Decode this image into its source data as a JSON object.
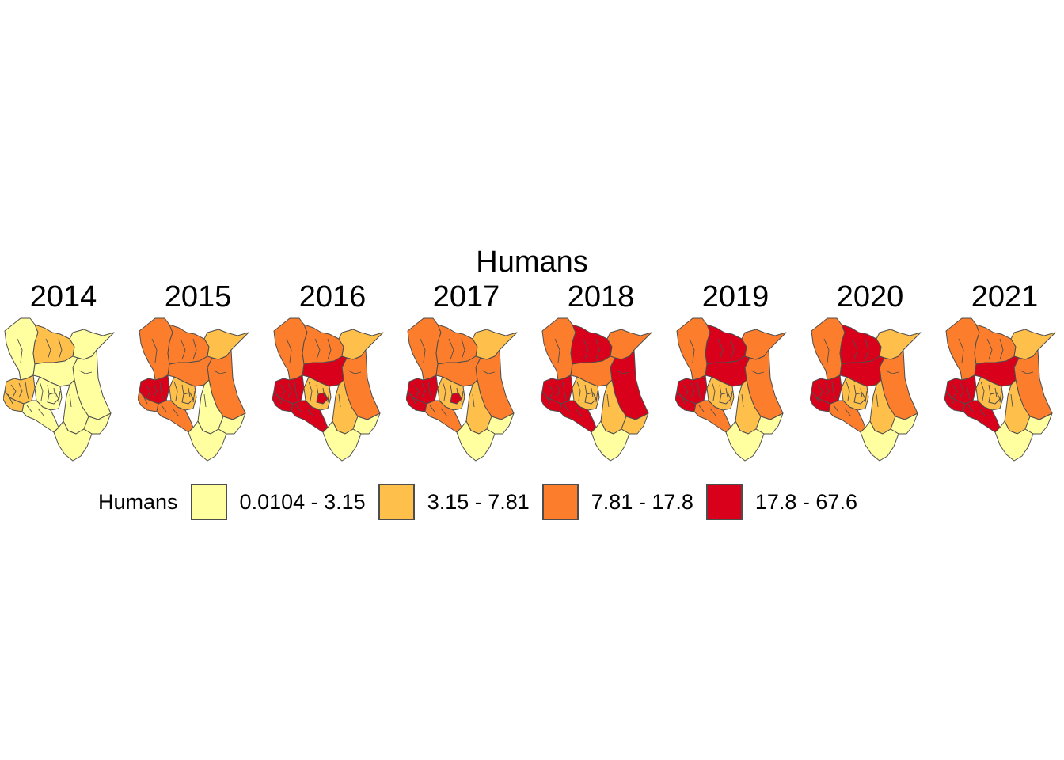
{
  "title": "Humans",
  "legend": {
    "title": "Humans",
    "classes": [
      {
        "label": "0.0104 - 3.15",
        "color": "#FFFFA0"
      },
      {
        "label": "3.15 - 7.81",
        "color": "#FEBF4B"
      },
      {
        "label": "7.81 - 17.8",
        "color": "#FC7D2B"
      },
      {
        "label": "17.8 - 67.6",
        "color": "#D9001C"
      }
    ]
  },
  "border_color": "#4d4d4d",
  "panels": [
    {
      "year": "2014",
      "regions": {
        "nw": 0,
        "n": 1,
        "ne": 0,
        "east": 0,
        "rift": 0,
        "west": 1,
        "lake": 1,
        "central": 0,
        "se": 0,
        "sw": 0,
        "coast_n": 0,
        "coast_s": 0,
        "nairobi": 0
      }
    },
    {
      "year": "2015",
      "regions": {
        "nw": 2,
        "n": 2,
        "ne": 1,
        "east": 2,
        "rift": 2,
        "west": 3,
        "lake": 2,
        "central": 1,
        "se": 0,
        "sw": 2,
        "coast_n": 0,
        "coast_s": 0,
        "nairobi": 1
      }
    },
    {
      "year": "2016",
      "regions": {
        "nw": 2,
        "n": 2,
        "ne": 1,
        "east": 2,
        "rift": 3,
        "west": 3,
        "lake": 3,
        "central": 1,
        "se": 1,
        "sw": 3,
        "coast_n": 0,
        "coast_s": 0,
        "nairobi": 3
      }
    },
    {
      "year": "2017",
      "regions": {
        "nw": 2,
        "n": 2,
        "ne": 1,
        "east": 2,
        "rift": 2,
        "west": 3,
        "lake": 3,
        "central": 1,
        "se": 1,
        "sw": 2,
        "coast_n": 0,
        "coast_s": 0,
        "nairobi": 3
      }
    },
    {
      "year": "2018",
      "regions": {
        "nw": 2,
        "n": 3,
        "ne": 2,
        "east": 3,
        "rift": 2,
        "west": 3,
        "lake": 3,
        "central": 1,
        "se": 1,
        "sw": 3,
        "coast_n": 1,
        "coast_s": 0,
        "nairobi": 1
      }
    },
    {
      "year": "2019",
      "regions": {
        "nw": 2,
        "n": 3,
        "ne": 2,
        "east": 2,
        "rift": 3,
        "west": 3,
        "lake": 3,
        "central": 1,
        "se": 1,
        "sw": 2,
        "coast_n": 0,
        "coast_s": 0,
        "nairobi": 1
      }
    },
    {
      "year": "2020",
      "regions": {
        "nw": 2,
        "n": 3,
        "ne": 1,
        "east": 2,
        "rift": 3,
        "west": 3,
        "lake": 3,
        "central": 1,
        "se": 1,
        "sw": 2,
        "coast_n": 0,
        "coast_s": 0,
        "nairobi": 1
      }
    },
    {
      "year": "2021",
      "regions": {
        "nw": 2,
        "n": 2,
        "ne": 1,
        "east": 2,
        "rift": 3,
        "west": 3,
        "lake": 3,
        "central": 1,
        "se": 1,
        "sw": 3,
        "coast_n": 0,
        "coast_s": 0,
        "nairobi": 1
      }
    }
  ]
}
